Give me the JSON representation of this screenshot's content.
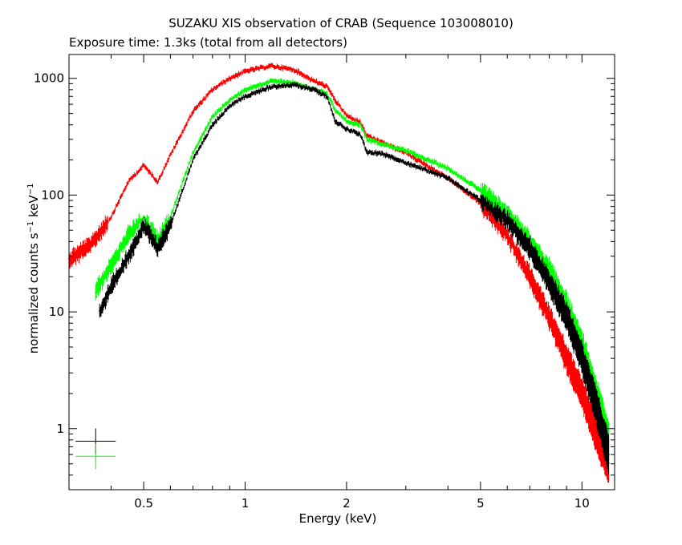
{
  "chart_data": {
    "type": "scatter",
    "title": "SUZAKU XIS observation of CRAB (Sequence 103008010)",
    "subtitle": "Exposure time: 1.3ks (total from all detectors)",
    "xlabel": "Energy (keV)",
    "ylabel": {
      "main": "normalized counts s",
      "exp1": "−1",
      "mid": " keV",
      "exp2": "−1"
    },
    "x_scale": "log",
    "y_scale": "log",
    "xlim": [
      0.3,
      12.5
    ],
    "ylim": [
      0.3,
      1600
    ],
    "x_ticks": [
      {
        "value": 0.5,
        "label": "0.5"
      },
      {
        "value": 1,
        "label": "1"
      },
      {
        "value": 2,
        "label": "2"
      },
      {
        "value": 5,
        "label": "5"
      },
      {
        "value": 10,
        "label": "10"
      }
    ],
    "y_ticks": [
      {
        "value": 1,
        "label": "1"
      },
      {
        "value": 10,
        "label": "10"
      },
      {
        "value": 100,
        "label": "100"
      },
      {
        "value": 1000,
        "label": "1000"
      }
    ],
    "series": [
      {
        "color": "#ff0000",
        "x": [
          0.3,
          0.35,
          0.4,
          0.45,
          0.5,
          0.55,
          0.6,
          0.7,
          0.8,
          0.9,
          1.0,
          1.2,
          1.4,
          1.6,
          1.75,
          1.85,
          2.0,
          2.2,
          2.3,
          2.5,
          3.0,
          4.0,
          5.0,
          6.0,
          7.0,
          8.0,
          9.0,
          10.0,
          11.0,
          12.0
        ],
        "y": [
          28,
          38,
          65,
          130,
          180,
          130,
          220,
          520,
          800,
          1000,
          1150,
          1280,
          1180,
          950,
          850,
          650,
          480,
          420,
          320,
          290,
          230,
          140,
          85,
          45,
          20,
          9,
          4,
          2,
          0.9,
          0.5
        ]
      },
      {
        "color": "#00ff00",
        "x": [
          0.36,
          0.4,
          0.45,
          0.5,
          0.55,
          0.6,
          0.7,
          0.8,
          0.9,
          1.0,
          1.2,
          1.4,
          1.6,
          1.75,
          1.85,
          2.0,
          2.2,
          2.3,
          2.5,
          3.0,
          4.0,
          5.0,
          6.0,
          7.0,
          8.0,
          9.0,
          10.0,
          11.0,
          12.0
        ],
        "y": [
          15,
          25,
          45,
          65,
          40,
          65,
          230,
          470,
          650,
          800,
          950,
          920,
          800,
          740,
          540,
          430,
          400,
          300,
          280,
          240,
          170,
          110,
          70,
          40,
          22,
          11,
          5,
          2,
          0.8
        ]
      },
      {
        "color": "#000000",
        "x": [
          0.37,
          0.4,
          0.45,
          0.5,
          0.55,
          0.6,
          0.7,
          0.8,
          0.9,
          1.0,
          1.2,
          1.4,
          1.6,
          1.75,
          1.85,
          2.0,
          2.2,
          2.3,
          2.5,
          3.0,
          4.0,
          5.0,
          6.0,
          7.0,
          8.0,
          9.0,
          10.0,
          11.0,
          12.0
        ],
        "y": [
          10,
          16,
          30,
          55,
          35,
          55,
          200,
          400,
          580,
          700,
          850,
          880,
          800,
          700,
          430,
          370,
          330,
          230,
          230,
          190,
          140,
          90,
          60,
          35,
          18,
          9,
          4,
          1.6,
          0.6
        ]
      }
    ],
    "legend_crosses": [
      {
        "color": "#000000",
        "energy": 0.36,
        "value": 0.78
      },
      {
        "color": "#00ff00",
        "energy": 0.36,
        "value": 0.58
      }
    ]
  }
}
